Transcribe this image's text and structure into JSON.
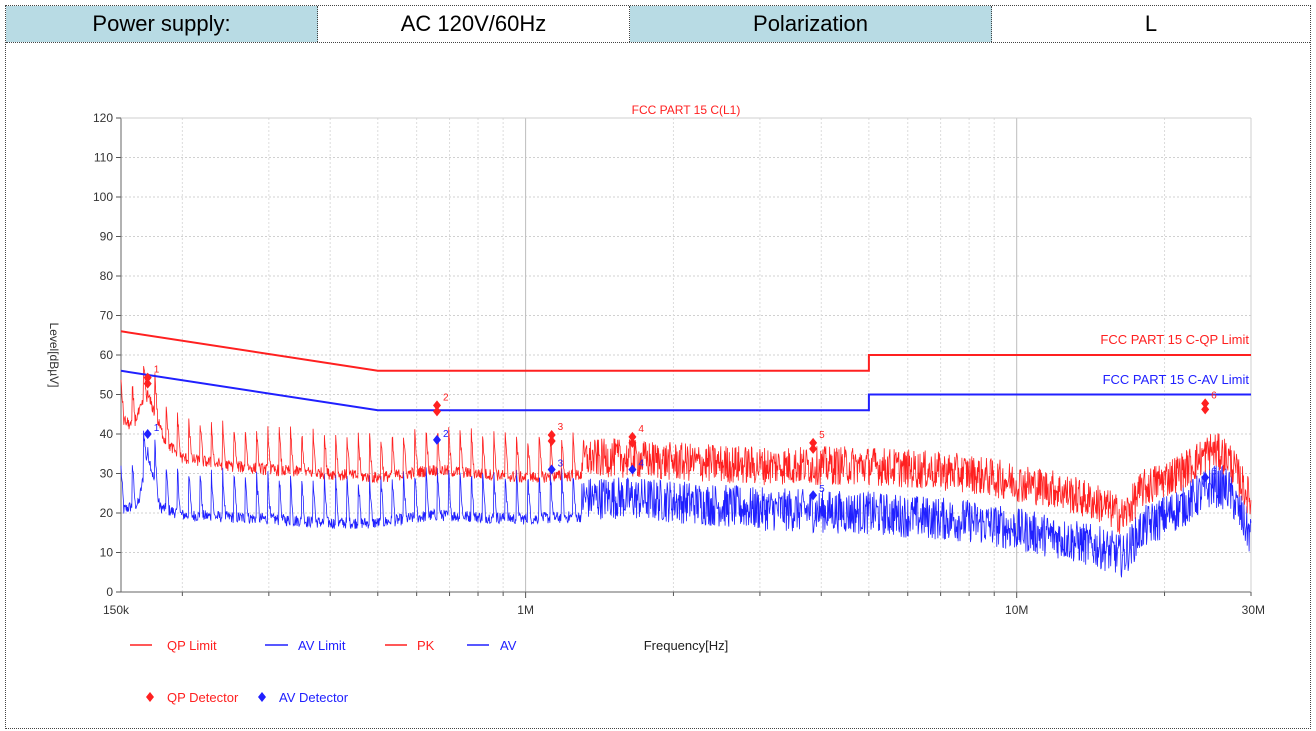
{
  "header": {
    "power_label": "Power supply:",
    "power_value": "AC 120V/60Hz",
    "polarization_label": "Polarization",
    "polarization_value": "L"
  },
  "colors": {
    "qp": "#ff2020",
    "av": "#2020ff",
    "header_bg": "#b8dbe4",
    "grid": "#d8d8d8"
  },
  "chart_data": {
    "type": "line",
    "title": "FCC PART 15 C(L1)",
    "xlabel": "Frequency[Hz]",
    "ylabel": "Level[dBµV]",
    "xscale": "log",
    "xlim": [
      150000,
      30000000
    ],
    "ylim": [
      0,
      120
    ],
    "yticks": [
      0,
      10,
      20,
      30,
      40,
      50,
      60,
      70,
      80,
      90,
      100,
      110,
      120
    ],
    "xtick_labels": [
      {
        "x": 150000,
        "label": "150k"
      },
      {
        "x": 1000000,
        "label": "1M"
      },
      {
        "x": 10000000,
        "label": "10M"
      },
      {
        "x": 30000000,
        "label": "30M"
      }
    ],
    "grid": true,
    "limit_lines": [
      {
        "name": "FCC PART 15 C-QP Limit",
        "color": "#ff2020",
        "points": [
          [
            150000,
            66
          ],
          [
            500000,
            56
          ],
          [
            5000000,
            56
          ],
          [
            5000000,
            60
          ],
          [
            30000000,
            60
          ]
        ]
      },
      {
        "name": "FCC PART 15 C-AV Limit",
        "color": "#2020ff",
        "points": [
          [
            150000,
            56
          ],
          [
            500000,
            46
          ],
          [
            5000000,
            46
          ],
          [
            5000000,
            50
          ],
          [
            30000000,
            50
          ]
        ]
      }
    ],
    "series": [
      {
        "name": "PK",
        "color": "#ff2020",
        "envelope": [
          [
            150000,
            48
          ],
          [
            158000,
            46
          ],
          [
            170000,
            54
          ],
          [
            185000,
            42
          ],
          [
            200000,
            38
          ],
          [
            250000,
            36
          ],
          [
            300000,
            35
          ],
          [
            400000,
            34
          ],
          [
            500000,
            33
          ],
          [
            650000,
            35
          ],
          [
            1000000,
            33
          ],
          [
            1500000,
            34
          ],
          [
            2000000,
            33
          ],
          [
            3000000,
            32
          ],
          [
            5000000,
            32
          ],
          [
            8000000,
            30
          ],
          [
            12000000,
            26
          ],
          [
            15000000,
            22
          ],
          [
            16500000,
            19
          ],
          [
            18000000,
            26
          ],
          [
            22000000,
            31
          ],
          [
            25000000,
            36
          ],
          [
            27000000,
            34
          ],
          [
            30000000,
            23
          ]
        ]
      },
      {
        "name": "AV",
        "color": "#2020ff",
        "envelope": [
          [
            150000,
            25
          ],
          [
            163000,
            27
          ],
          [
            170000,
            40
          ],
          [
            180000,
            26
          ],
          [
            200000,
            24
          ],
          [
            300000,
            23
          ],
          [
            400000,
            22
          ],
          [
            500000,
            22
          ],
          [
            650000,
            24
          ],
          [
            1000000,
            23
          ],
          [
            1500000,
            24
          ],
          [
            2000000,
            23
          ],
          [
            3000000,
            21
          ],
          [
            5000000,
            20
          ],
          [
            8000000,
            18
          ],
          [
            12000000,
            14
          ],
          [
            15000000,
            11
          ],
          [
            16500000,
            9
          ],
          [
            18000000,
            16
          ],
          [
            22000000,
            22
          ],
          [
            25000000,
            27
          ],
          [
            27000000,
            26
          ],
          [
            30000000,
            14
          ]
        ]
      }
    ],
    "qp_markers": [
      {
        "n": "1",
        "x": 170000,
        "y": 53.5
      },
      {
        "n": "2",
        "x": 660000,
        "y": 46.5
      },
      {
        "n": "3",
        "x": 1130000,
        "y": 39
      },
      {
        "n": "4",
        "x": 1650000,
        "y": 38.5
      },
      {
        "n": "5",
        "x": 3850000,
        "y": 37
      },
      {
        "n": "6",
        "x": 24200000,
        "y": 47
      }
    ],
    "av_markers": [
      {
        "n": "1",
        "x": 170000,
        "y": 40
      },
      {
        "n": "2",
        "x": 660000,
        "y": 38.5
      },
      {
        "n": "3",
        "x": 1130000,
        "y": 31
      },
      {
        "n": "4",
        "x": 1650000,
        "y": 31
      },
      {
        "n": "5",
        "x": 3850000,
        "y": 24.5
      },
      {
        "n": "6",
        "x": 24200000,
        "y": 29
      }
    ],
    "legend": [
      "QP Limit",
      "AV Limit",
      "PK",
      "AV",
      "QP Detector",
      "AV Detector"
    ],
    "legend_placement": "bottom"
  }
}
